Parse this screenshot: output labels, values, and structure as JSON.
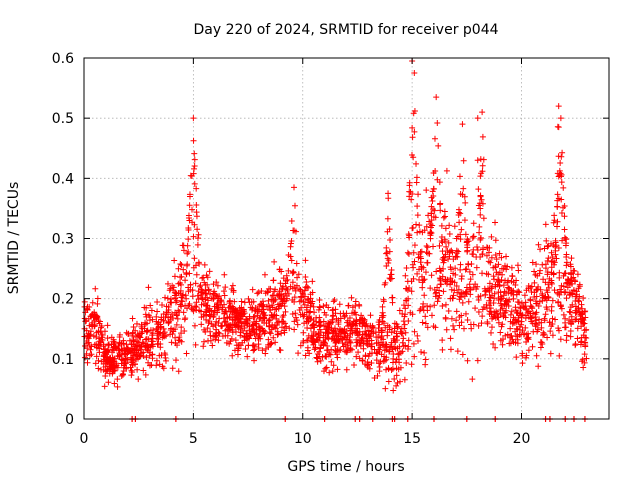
{
  "chart_data": {
    "type": "scatter",
    "title": "Day 220 of 2024, SRMTID for receiver p044",
    "xlabel": "GPS time / hours",
    "ylabel": "SRMTID / TECUs",
    "xlim": [
      0,
      24
    ],
    "ylim": [
      0,
      0.6
    ],
    "x_ticks": [
      0,
      5,
      10,
      15,
      20
    ],
    "x_tick_labels": [
      "0",
      "5",
      "10",
      "15",
      "20"
    ],
    "y_ticks": [
      0,
      0.1,
      0.2,
      0.3,
      0.4,
      0.5,
      0.6
    ],
    "y_tick_labels": [
      "0",
      "0.1",
      "0.2",
      "0.3",
      "0.4",
      "0.5",
      "0.6"
    ],
    "grid": true,
    "marker": "+",
    "colors": {
      "series": "#ff0000",
      "grid": "#b0b0b0",
      "axis": "#000000"
    },
    "baseline_markers_x": [
      2.2,
      2.35,
      4.2,
      9.2,
      11.0,
      12.4,
      12.6,
      13.2,
      14.1,
      14.2,
      14.8,
      16.0,
      17.5,
      18.8,
      21.1,
      21.3,
      22.0,
      22.4,
      22.9
    ],
    "envelope_hours": [
      0,
      0.5,
      1,
      1.5,
      2,
      2.5,
      3,
      3.5,
      4,
      4.5,
      5,
      5.5,
      6,
      6.5,
      7,
      7.5,
      8,
      8.5,
      9,
      9.5,
      10,
      10.5,
      11,
      11.5,
      12,
      12.5,
      13,
      13.5,
      14,
      14.5,
      15,
      15.5,
      16,
      16.5,
      17,
      17.5,
      18,
      18.5,
      19,
      19.5,
      20,
      20.5,
      21,
      21.5,
      22,
      22.5,
      23
    ],
    "envelope_center": [
      0.14,
      0.16,
      0.1,
      0.1,
      0.11,
      0.12,
      0.14,
      0.15,
      0.17,
      0.2,
      0.25,
      0.18,
      0.17,
      0.18,
      0.16,
      0.15,
      0.16,
      0.17,
      0.19,
      0.2,
      0.19,
      0.15,
      0.13,
      0.14,
      0.14,
      0.15,
      0.13,
      0.12,
      0.11,
      0.12,
      0.2,
      0.24,
      0.25,
      0.25,
      0.24,
      0.22,
      0.2,
      0.2,
      0.21,
      0.19,
      0.16,
      0.18,
      0.2,
      0.23,
      0.22,
      0.19,
      0.13
    ],
    "envelope_spread": [
      0.04,
      0.05,
      0.03,
      0.03,
      0.03,
      0.03,
      0.05,
      0.05,
      0.06,
      0.07,
      0.1,
      0.05,
      0.04,
      0.04,
      0.04,
      0.04,
      0.04,
      0.05,
      0.06,
      0.06,
      0.06,
      0.04,
      0.04,
      0.04,
      0.04,
      0.04,
      0.04,
      0.04,
      0.04,
      0.05,
      0.09,
      0.1,
      0.1,
      0.09,
      0.09,
      0.08,
      0.08,
      0.07,
      0.07,
      0.06,
      0.05,
      0.06,
      0.07,
      0.08,
      0.08,
      0.06,
      0.04
    ],
    "peaks": [
      {
        "x": 5.0,
        "y": 0.5
      },
      {
        "x": 9.6,
        "y": 0.385
      },
      {
        "x": 13.9,
        "y": 0.375
      },
      {
        "x": 15.0,
        "y": 0.595
      },
      {
        "x": 15.1,
        "y": 0.575
      },
      {
        "x": 16.1,
        "y": 0.535
      },
      {
        "x": 17.3,
        "y": 0.49
      },
      {
        "x": 18.0,
        "y": 0.5
      },
      {
        "x": 18.2,
        "y": 0.51
      },
      {
        "x": 21.7,
        "y": 0.52
      },
      {
        "x": 21.8,
        "y": 0.5
      }
    ],
    "point_count": 2600
  }
}
